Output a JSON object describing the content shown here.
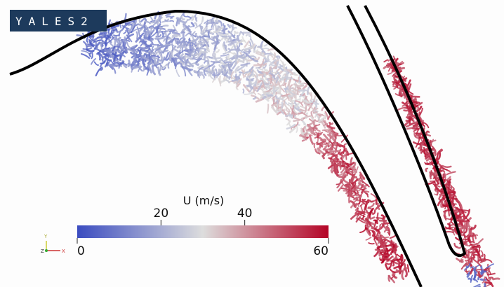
{
  "logo": "YALES2",
  "colorbar": {
    "label": "U (m/s)",
    "range": [
      0,
      60
    ],
    "ticks": [
      0,
      20,
      40,
      60
    ],
    "colormap": [
      "#3b4cc0",
      "#dddddd",
      "#b40426"
    ]
  },
  "axes_triad": [
    "Y",
    "Z",
    "X"
  ]
}
